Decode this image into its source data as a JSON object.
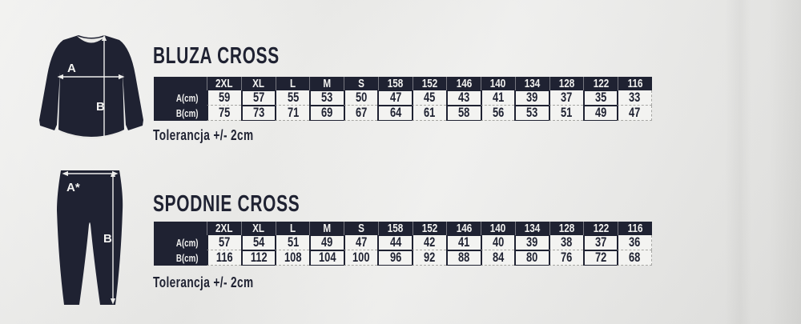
{
  "page": {
    "background_color": "#e7e7e5",
    "brand_navy": "#1f2232",
    "cell_background": "#f3f3f1"
  },
  "sections": [
    {
      "id": "bluza",
      "title": "BLUZA CROSS",
      "tolerance_note": "Tolerancja +/- 2cm",
      "figure": {
        "name": "sweatshirt",
        "width_label": "A",
        "length_label": "B"
      },
      "table": {
        "columns": [
          "2XL",
          "XL",
          "L",
          "M",
          "S",
          "158",
          "152",
          "146",
          "140",
          "134",
          "128",
          "122",
          "116"
        ],
        "rows": [
          {
            "label": "A(cm)",
            "values": [
              "59",
              "57",
              "55",
              "53",
              "50",
              "47",
              "45",
              "43",
              "41",
              "39",
              "37",
              "35",
              "33"
            ]
          },
          {
            "label": "B(cm)",
            "values": [
              "75",
              "73",
              "71",
              "69",
              "67",
              "64",
              "61",
              "58",
              "56",
              "53",
              "51",
              "49",
              "47"
            ]
          }
        ]
      }
    },
    {
      "id": "spodnie",
      "title": "SPODNIE CROSS",
      "tolerance_note": "Tolerancja +/- 2cm",
      "figure": {
        "name": "pants",
        "width_label": "A*",
        "length_label": "B"
      },
      "table": {
        "columns": [
          "2XL",
          "XL",
          "L",
          "M",
          "S",
          "158",
          "152",
          "146",
          "140",
          "134",
          "128",
          "122",
          "116"
        ],
        "rows": [
          {
            "label": "A(cm)",
            "values": [
              "57",
              "54",
              "51",
              "49",
              "47",
              "44",
              "42",
              "41",
              "40",
              "39",
              "38",
              "37",
              "36"
            ]
          },
          {
            "label": "B(cm)",
            "values": [
              "116",
              "112",
              "108",
              "104",
              "100",
              "96",
              "92",
              "88",
              "84",
              "80",
              "76",
              "72",
              "68"
            ]
          }
        ]
      }
    }
  ]
}
